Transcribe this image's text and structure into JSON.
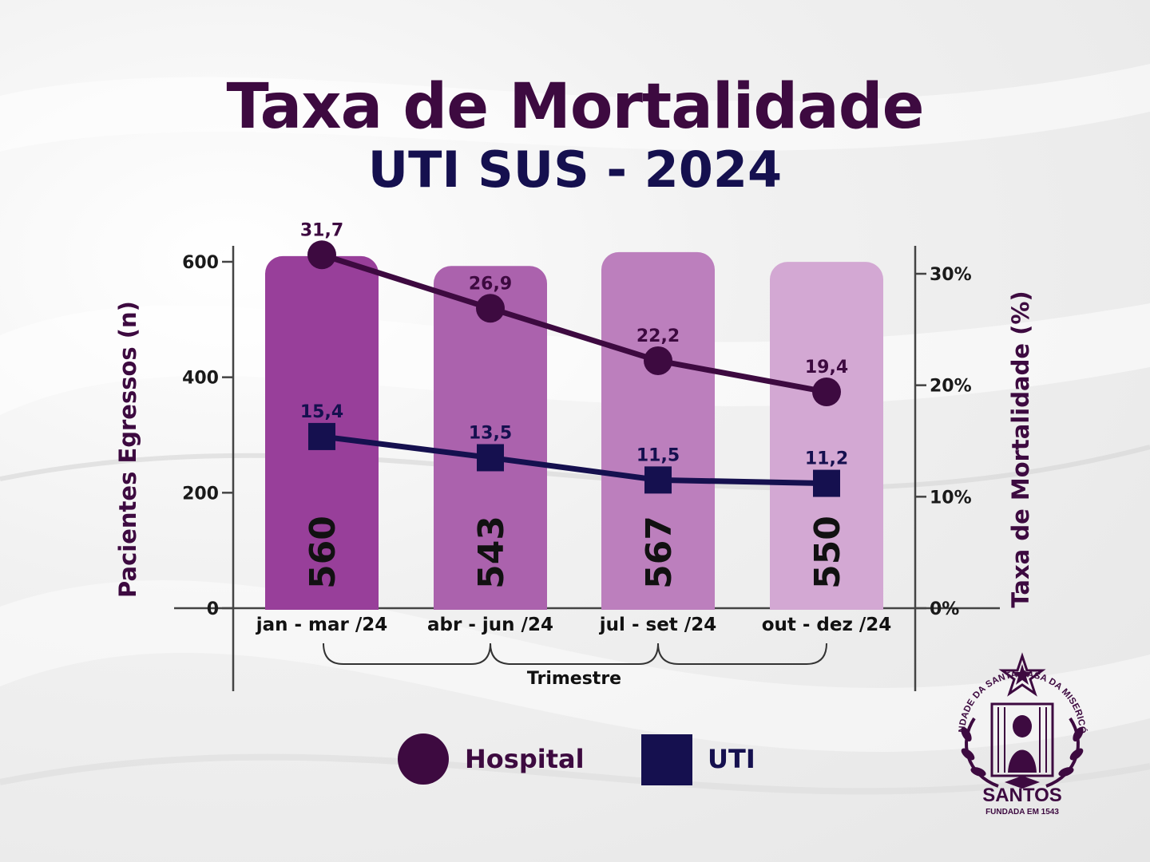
{
  "title": "Taxa de Mortalidade",
  "subtitle": "UTI SUS - 2024",
  "colors": {
    "title": "#3d0a40",
    "subtitle": "#15104f",
    "hospital": "#3d0a40",
    "uti": "#15104f",
    "bars": [
      "#983f9a",
      "#ab62ad",
      "#bc7fbd",
      "#d3a8d3"
    ]
  },
  "legend": {
    "hospital": "Hospital",
    "uti": "UTI"
  },
  "logo": {
    "arc_text": "IRMANDADE DA SANTA CASA DA MISERICÓRDIA",
    "name": "SANTOS",
    "founded": "FUNDADA EM 1543"
  },
  "chart_data": {
    "type": "bar",
    "categories": [
      "jan - mar /24",
      "abr - jun /24",
      "jul - set /24",
      "out - dez /24"
    ],
    "xlabel": "Trimestre",
    "ylabel_left": "Pacientes Egressos (n)",
    "ylabel_right": "Taxa de Mortalidade (%)",
    "y_left_ticks": [
      "0",
      "200",
      "400",
      "600"
    ],
    "y_left_lim": [
      0,
      600
    ],
    "y_right_ticks": [
      "0%",
      "10%",
      "20%",
      "30%"
    ],
    "y_right_lim": [
      0,
      30
    ],
    "bars": {
      "values": [
        560,
        543,
        567,
        550
      ],
      "labels": [
        "560",
        "543",
        "567",
        "550"
      ]
    },
    "series": [
      {
        "name": "Hospital",
        "type": "line",
        "marker": "circle",
        "values": [
          31.7,
          26.9,
          22.2,
          19.4
        ],
        "labels": [
          "31,7",
          "26,9",
          "22,2",
          "19,4"
        ]
      },
      {
        "name": "UTI",
        "type": "line",
        "marker": "square",
        "values": [
          15.4,
          13.5,
          11.5,
          11.2
        ],
        "labels": [
          "15,4",
          "13,5",
          "11,5",
          "11,2"
        ]
      }
    ]
  }
}
